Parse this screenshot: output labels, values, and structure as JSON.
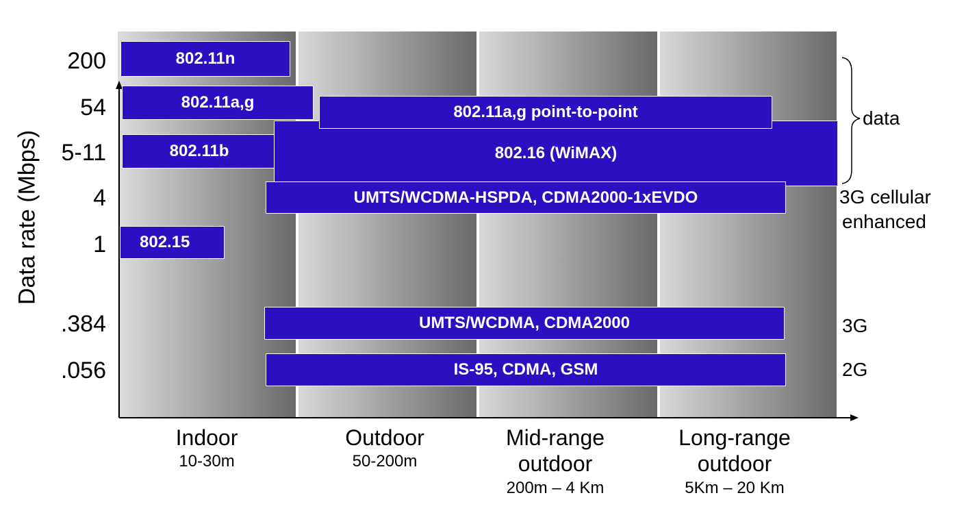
{
  "axis": {
    "y_title": "Data rate (Mbps)"
  },
  "y_ticks": [
    "200",
    "54",
    "5-11",
    "4",
    "1",
    ".384",
    ".056"
  ],
  "x_columns": [
    {
      "name": "Indoor",
      "range": "10-30m"
    },
    {
      "name": "Outdoor",
      "range": "50-200m"
    },
    {
      "name": "Mid-range outdoor",
      "range": "200m – 4 Km"
    },
    {
      "name": "Long-range outdoor",
      "range": "5Km – 20 Km"
    }
  ],
  "standards": [
    "802.11n",
    "802.11a,g",
    "802.11a,g point-to-point",
    "802.11b",
    "802.16 (WiMAX)",
    "UMTS/WCDMA-HSPDA, CDMA2000-1xEVDO",
    "802.15",
    "UMTS/WCDMA, CDMA2000",
    "IS-95, CDMA, GSM"
  ],
  "right_labels": {
    "data": "data",
    "cell_enhanced_1": "3G cellular",
    "cell_enhanced_2": "enhanced",
    "g3": "3G",
    "g2": "2G"
  },
  "colors": {
    "bar": "#2a10c0",
    "axis": "#000000"
  }
}
